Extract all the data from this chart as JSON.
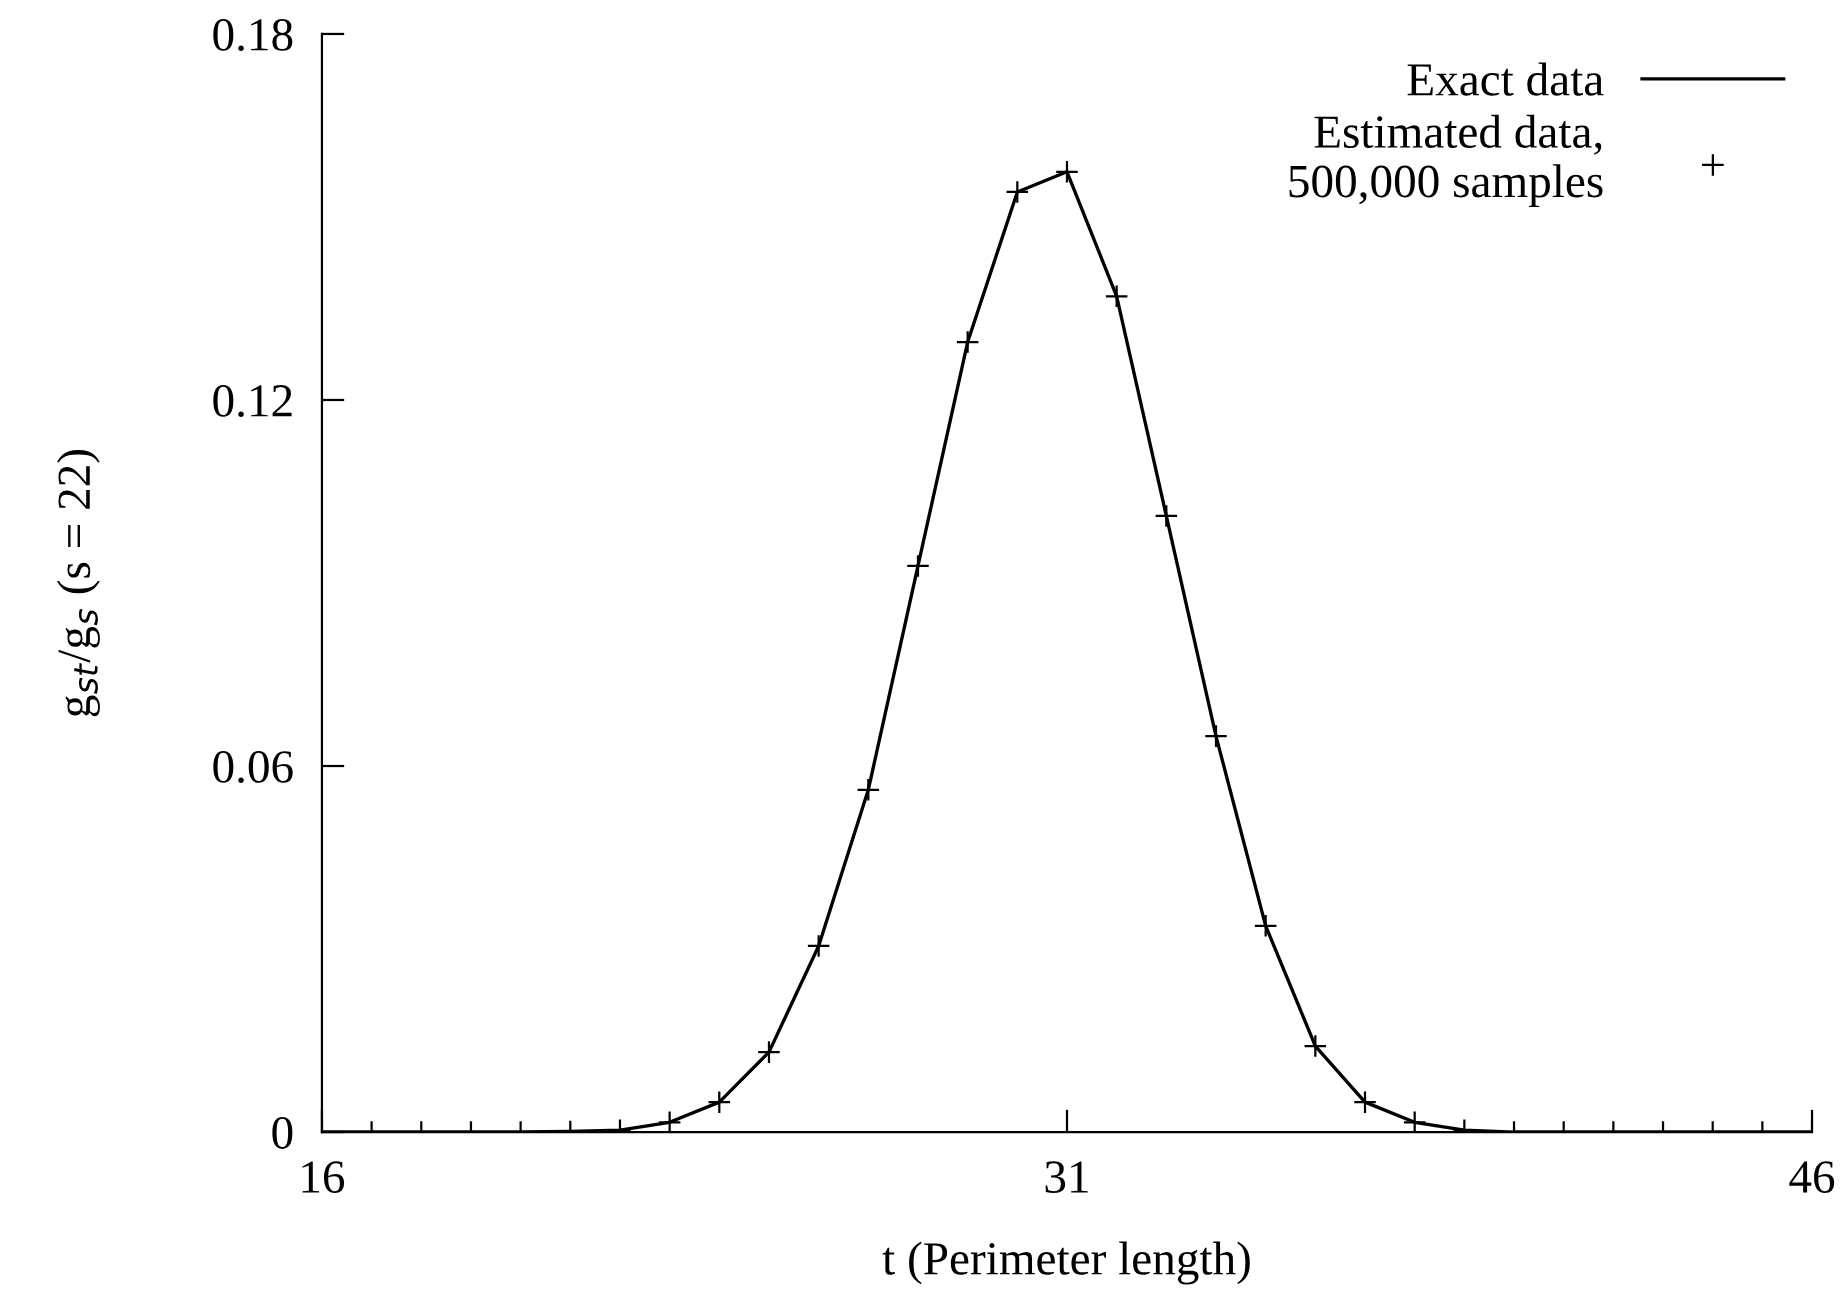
{
  "chart_data": {
    "type": "line",
    "xlabel": "t (Perimeter length)",
    "ylabel": "g$_{st}$/g$_{s}$ (s = 22)",
    "x": [
      16,
      17,
      18,
      19,
      20,
      21,
      22,
      23,
      24,
      25,
      26,
      27,
      28,
      29,
      30,
      31,
      32,
      33,
      34,
      35,
      36,
      37,
      38,
      39,
      40,
      41,
      42,
      43,
      44,
      45,
      46
    ],
    "series": [
      {
        "name": "Exact data",
        "color": "#000000",
        "marker": "none",
        "values": [
          0,
          0,
          0,
          0,
          0,
          0.0001,
          0.0003,
          0.0016,
          0.0049,
          0.0131,
          0.0305,
          0.0561,
          0.0928,
          0.1295,
          0.1541,
          0.1574,
          0.137,
          0.101,
          0.0649,
          0.0338,
          0.0141,
          0.0049,
          0.0016,
          0.0003,
          0,
          0,
          0,
          0,
          0,
          0,
          0
        ]
      },
      {
        "name": "Estimated data,\n500,000 samples",
        "type": "scatter",
        "color": "#000000",
        "marker": "cross",
        "values": [
          0,
          0,
          0,
          0,
          0,
          0.0001,
          0.0003,
          0.0016,
          0.0049,
          0.0131,
          0.0305,
          0.0561,
          0.0928,
          0.1295,
          0.1541,
          0.1574,
          0.137,
          0.101,
          0.0649,
          0.0338,
          0.0141,
          0.0049,
          0.0016,
          0.0003,
          0,
          0,
          0,
          0,
          0,
          0,
          0
        ]
      }
    ],
    "xlim": [
      16,
      46
    ],
    "xticks": [
      16,
      31,
      46
    ],
    "ylim": [
      0,
      0.18
    ],
    "yticks": [
      0,
      0.06,
      0.12,
      0.18
    ],
    "grid": false,
    "legend": "top right"
  }
}
